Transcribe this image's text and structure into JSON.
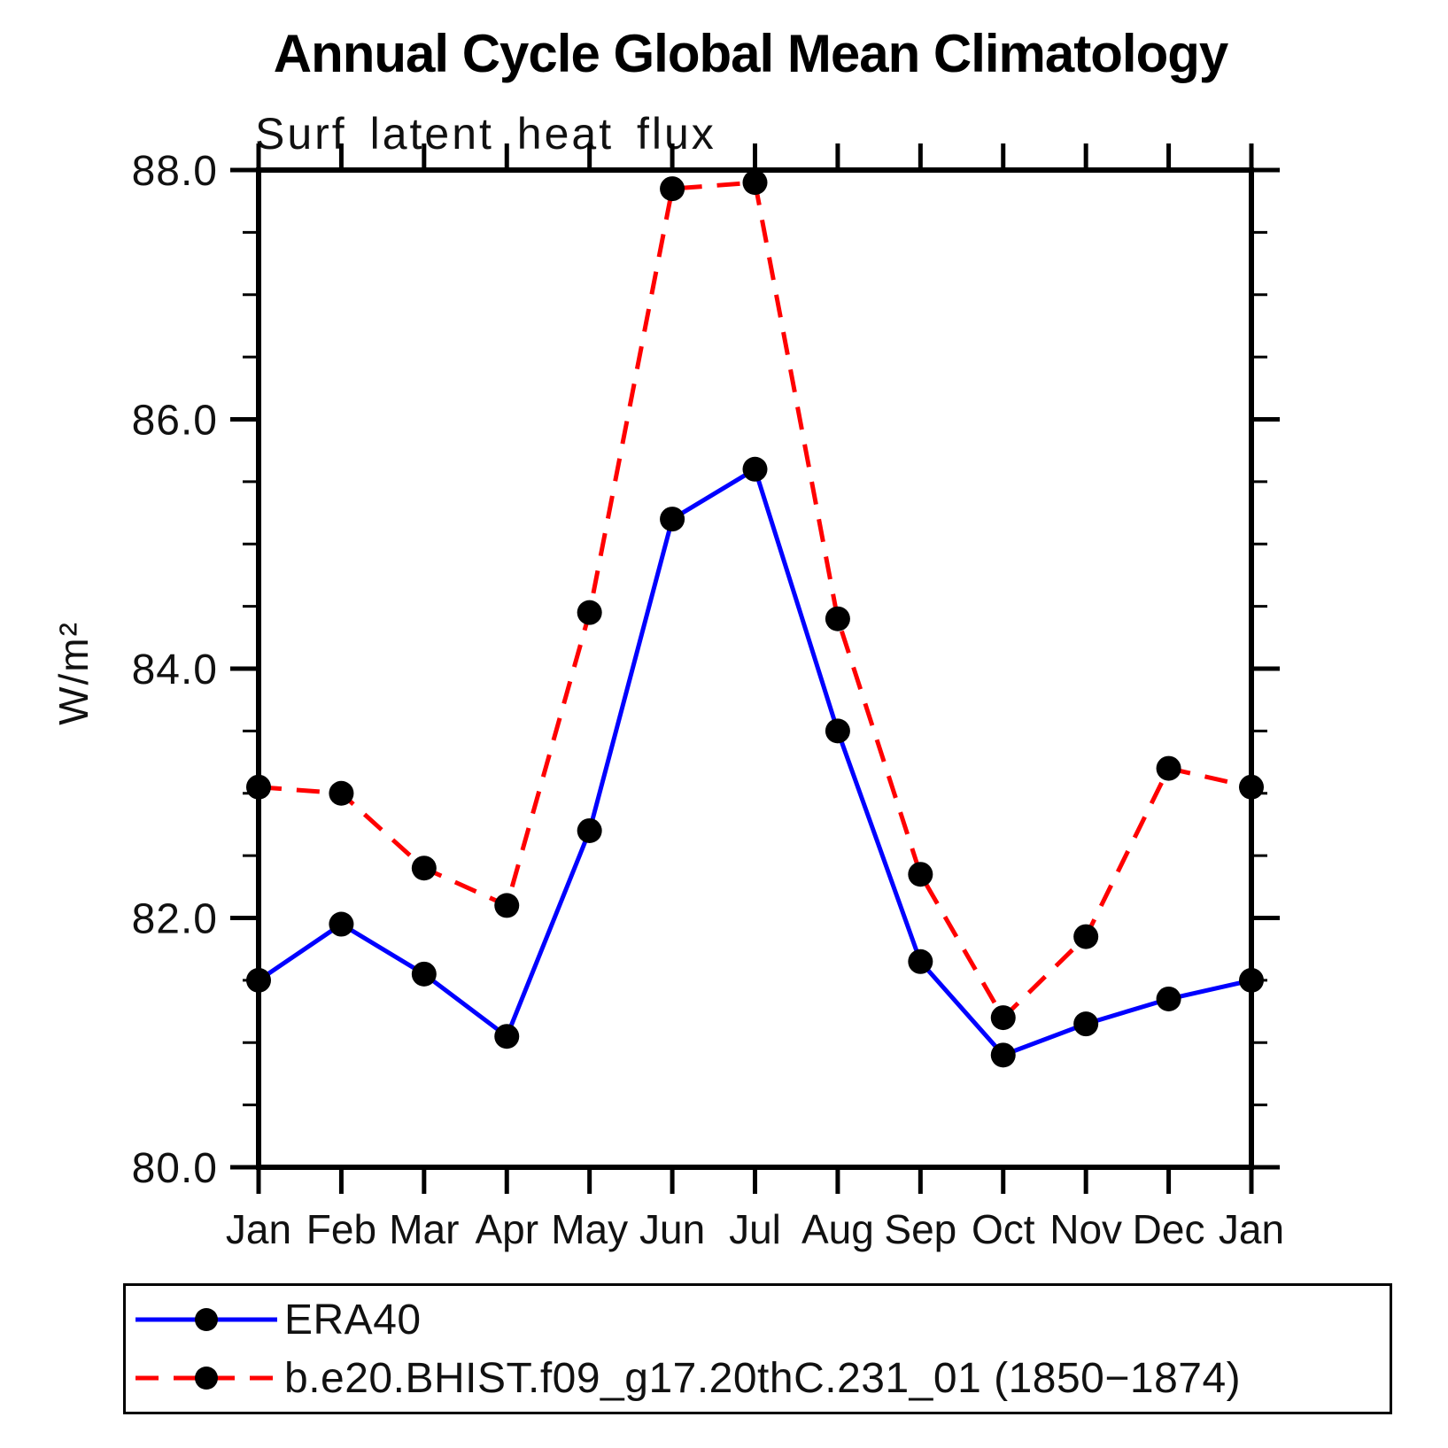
{
  "title": "Annual Cycle Global Mean Climatology",
  "colors": {
    "background": "#ffffff",
    "axis": "#000000",
    "era40_line": "#0000ff",
    "model_line": "#ff0000",
    "marker": "#000000"
  },
  "chart_data": {
    "type": "line",
    "title": "Annual Cycle Global Mean Climatology",
    "subtitle": "Surf latent heat flux",
    "xlabel": "",
    "ylabel": "W/m²",
    "ylim": [
      80.0,
      88.0
    ],
    "y_major_tick_values": [
      80.0,
      82.0,
      84.0,
      86.0,
      88.0
    ],
    "y_major_tick_labels": [
      "80.0",
      "82.0",
      "84.0",
      "86.0",
      "88.0"
    ],
    "y_minor_tick_step": 0.5,
    "grid": false,
    "legend_position": "bottom-left-box",
    "categories": [
      "Jan",
      "Feb",
      "Mar",
      "Apr",
      "May",
      "Jun",
      "Jul",
      "Aug",
      "Sep",
      "Oct",
      "Nov",
      "Dec",
      "Jan"
    ],
    "series": [
      {
        "name": "ERA40",
        "color": "#0000ff",
        "line_style": "solid",
        "marker": "filled-circle",
        "marker_color": "#000000",
        "values": [
          81.5,
          81.95,
          81.55,
          81.05,
          82.7,
          85.2,
          85.6,
          83.5,
          81.65,
          80.9,
          81.15,
          81.35,
          81.5
        ]
      },
      {
        "name": "b.e20.BHIST.f09_g17.20thC.231_01 (1850−1874)",
        "color": "#ff0000",
        "line_style": "dashed",
        "marker": "filled-circle",
        "marker_color": "#000000",
        "values": [
          83.05,
          83.0,
          82.4,
          82.1,
          84.45,
          87.85,
          87.9,
          84.4,
          82.35,
          81.2,
          81.85,
          83.2,
          83.05
        ]
      }
    ]
  }
}
